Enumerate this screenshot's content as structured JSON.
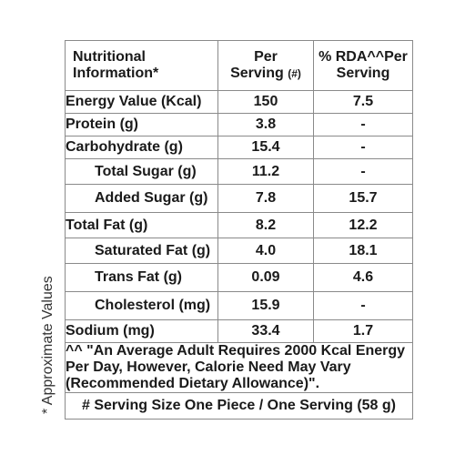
{
  "side_note": "* Approximate Values",
  "header": {
    "col1_line1": "Nutritional",
    "col1_line2": "Information*",
    "col2_line1": "Per",
    "col2_line2": "Serving",
    "col2_mark": "(#)",
    "col3_line1": "% RDA^^Per",
    "col3_line2": "Serving"
  },
  "rows": [
    {
      "name": "Energy Value (Kcal)",
      "per_serving": "150",
      "rda": "7.5"
    },
    {
      "name": "Protein (g)",
      "per_serving": "3.8",
      "rda": "-"
    },
    {
      "name": "Carbohydrate (g)",
      "per_serving": "15.4",
      "rda": "-"
    },
    {
      "name": "Total Sugar (g)",
      "per_serving": "11.2",
      "rda": "-"
    },
    {
      "name": "Added Sugar (g)",
      "per_serving": "7.8",
      "rda": "15.7"
    },
    {
      "name": "Total Fat (g)",
      "per_serving": "8.2",
      "rda": "12.2"
    },
    {
      "name": "Saturated Fat (g)",
      "per_serving": "4.0",
      "rda": "18.1"
    },
    {
      "name": "Trans Fat (g)",
      "per_serving": "0.09",
      "rda": "4.6"
    },
    {
      "name": "Cholesterol (mg)",
      "per_serving": "15.9",
      "rda": "-"
    },
    {
      "name": "Sodium (mg)",
      "per_serving": "33.4",
      "rda": "1.7"
    }
  ],
  "footnote": "^^ \"An Average Adult Requires 2000 Kcal Energy Per Day, However, Calorie Need May Vary (Recommended Dietary Allowance)\".",
  "serving_note": "# Serving Size One Piece / One Serving (58 g)"
}
